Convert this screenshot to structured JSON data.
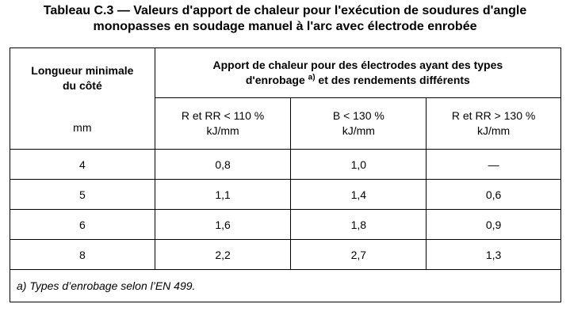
{
  "title": {
    "line1": "Tableau C.3 — Valeurs d'apport de chaleur pour l'exécution de soudures d'angle",
    "line2": "monopasses en soudage manuel à l'arc avec électrode enrobée"
  },
  "table": {
    "row_header": {
      "line1": "Longueur minimale",
      "line2": "du côté",
      "unit": "mm"
    },
    "group_header": {
      "line1": "Apport de chaleur pour des électrodes ayant des types",
      "line2_before": "d'enrobage ",
      "footnote_marker": "a)",
      "line2_after": " et des rendements différents"
    },
    "columns": [
      {
        "label": "R et RR < 110 %",
        "unit": "kJ/mm"
      },
      {
        "label": "B < 130 %",
        "unit": "kJ/mm"
      },
      {
        "label": "R et RR > 130 %",
        "unit": "kJ/mm"
      }
    ],
    "rows": [
      {
        "length": "4",
        "values": [
          "0,8",
          "1,0",
          "—"
        ]
      },
      {
        "length": "5",
        "values": [
          "1,1",
          "1,4",
          "0,6"
        ]
      },
      {
        "length": "6",
        "values": [
          "1,6",
          "1,8",
          "0,9"
        ]
      },
      {
        "length": "8",
        "values": [
          "2,2",
          "2,7",
          "1,3"
        ]
      }
    ],
    "footnote": "a) Types d’enrobage selon l’EN 499."
  }
}
